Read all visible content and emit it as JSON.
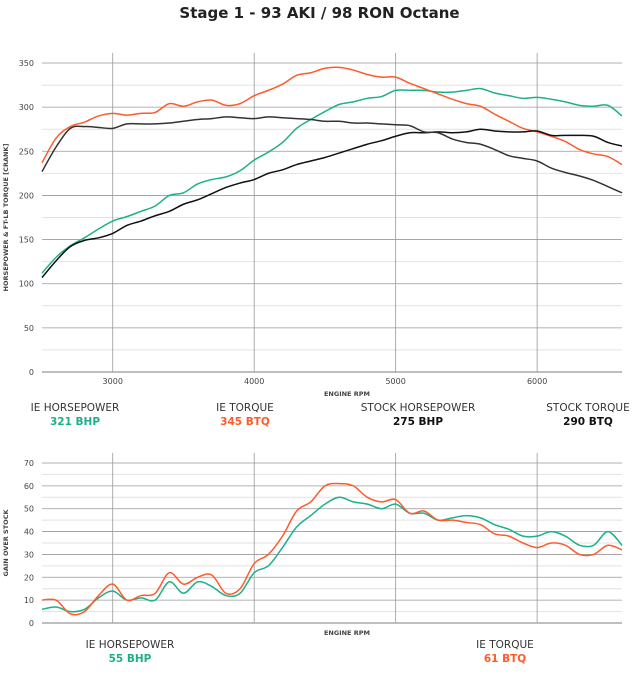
{
  "title": "Stage 1 - 93 AKI / 98 RON Octane",
  "colors": {
    "ie_hp": "#1db08a",
    "ie_tq": "#ff5a2b",
    "stock_hp": "#111111",
    "stock_tq": "#333333"
  },
  "legend_top": [
    {
      "label": "IE HORSEPOWER",
      "value": "321 BHP",
      "color": "#1db08a"
    },
    {
      "label": "IE TORQUE",
      "value": "345 BTQ",
      "color": "#ff5a2b"
    },
    {
      "label": "STOCK HORSEPOWER",
      "value": "275 BHP",
      "color": "#111111"
    },
    {
      "label": "STOCK TORQUE",
      "value": "290 BTQ",
      "color": "#111111"
    }
  ],
  "legend_bottom": [
    {
      "label": "IE HORSEPOWER",
      "value": "55 BHP",
      "color": "#1db08a"
    },
    {
      "label": "IE TORQUE",
      "value": "61 BTQ",
      "color": "#ff5a2b"
    }
  ],
  "chart_data": [
    {
      "type": "line",
      "xlabel": "ENGINE RPM",
      "ylabel": "HORSEPOWER & FT-LB TORQUE [CRANK]",
      "xlim": [
        2500,
        6600
      ],
      "ylim": [
        0,
        350
      ],
      "xticks": [
        3000,
        4000,
        5000,
        6000
      ],
      "yticks": [
        0,
        50,
        100,
        150,
        200,
        250,
        300,
        350
      ],
      "grid": true,
      "x": [
        2500,
        2600,
        2700,
        2800,
        2900,
        3000,
        3100,
        3200,
        3300,
        3400,
        3500,
        3600,
        3700,
        3800,
        3900,
        4000,
        4100,
        4200,
        4300,
        4400,
        4500,
        4600,
        4700,
        4800,
        4900,
        5000,
        5100,
        5200,
        5300,
        5400,
        5500,
        5600,
        5700,
        5800,
        5900,
        6000,
        6100,
        6200,
        6300,
        6400,
        6500,
        6600
      ],
      "series": [
        {
          "name": "IE HORSEPOWER",
          "color": "#1db08a",
          "values": [
            112,
            130,
            143,
            152,
            162,
            171,
            176,
            182,
            188,
            200,
            203,
            213,
            218,
            221,
            228,
            240,
            249,
            260,
            276,
            286,
            295,
            303,
            306,
            310,
            312,
            319,
            319,
            319,
            317,
            317,
            319,
            321,
            316,
            313,
            310,
            311,
            309,
            306,
            302,
            301,
            302,
            290
          ]
        },
        {
          "name": "IE TORQUE",
          "color": "#ff5a2b",
          "values": [
            237,
            265,
            278,
            283,
            290,
            293,
            291,
            293,
            294,
            304,
            301,
            306,
            308,
            302,
            304,
            313,
            319,
            326,
            336,
            339,
            344,
            345,
            342,
            337,
            334,
            334,
            327,
            321,
            315,
            309,
            304,
            301,
            292,
            284,
            276,
            272,
            267,
            261,
            252,
            247,
            244,
            235
          ]
        },
        {
          "name": "STOCK HORSEPOWER",
          "color": "#111111",
          "values": [
            107,
            126,
            142,
            149,
            152,
            157,
            166,
            171,
            177,
            182,
            190,
            195,
            202,
            209,
            214,
            218,
            225,
            229,
            235,
            239,
            243,
            248,
            253,
            258,
            262,
            267,
            271,
            271,
            272,
            271,
            272,
            275,
            273,
            272,
            272,
            273,
            268,
            268,
            268,
            267,
            260,
            256
          ]
        },
        {
          "name": "STOCK TORQUE",
          "color": "#333333",
          "values": [
            227,
            255,
            276,
            278,
            277,
            276,
            281,
            281,
            281,
            282,
            284,
            286,
            287,
            289,
            288,
            287,
            289,
            288,
            287,
            286,
            284,
            284,
            282,
            282,
            281,
            280,
            279,
            272,
            271,
            264,
            260,
            258,
            252,
            245,
            242,
            239,
            231,
            226,
            222,
            217,
            210,
            203
          ]
        }
      ]
    },
    {
      "type": "line",
      "xlabel": "ENGINE RPM",
      "ylabel": "GAIN OVER STOCK",
      "xlim": [
        2500,
        6600
      ],
      "ylim": [
        0,
        70
      ],
      "xticks": [
        3000,
        4000,
        5000,
        6000
      ],
      "yticks": [
        0,
        10,
        20,
        30,
        40,
        50,
        60,
        70
      ],
      "grid": true,
      "x": [
        2500,
        2600,
        2700,
        2800,
        2900,
        3000,
        3100,
        3200,
        3300,
        3400,
        3500,
        3600,
        3700,
        3800,
        3900,
        4000,
        4100,
        4200,
        4300,
        4400,
        4500,
        4600,
        4700,
        4800,
        4900,
        5000,
        5100,
        5200,
        5300,
        5400,
        5500,
        5600,
        5700,
        5800,
        5900,
        6000,
        6100,
        6200,
        6300,
        6400,
        6500,
        6600
      ],
      "series": [
        {
          "name": "IE HORSEPOWER",
          "color": "#1db08a",
          "values": [
            6,
            7,
            5,
            6,
            11,
            14,
            10,
            11,
            10,
            18,
            13,
            18,
            16,
            12,
            13,
            22,
            25,
            33,
            42,
            47,
            52,
            55,
            53,
            52,
            50,
            52,
            48,
            48,
            45,
            46,
            47,
            46,
            43,
            41,
            38,
            38,
            40,
            38,
            34,
            34,
            40,
            34
          ]
        },
        {
          "name": "IE TORQUE",
          "color": "#ff5a2b",
          "values": [
            10,
            10,
            4,
            5,
            12,
            17,
            10,
            12,
            13,
            22,
            17,
            20,
            21,
            13,
            15,
            26,
            30,
            38,
            49,
            53,
            60,
            61,
            60,
            55,
            53,
            54,
            48,
            49,
            45,
            45,
            44,
            43,
            39,
            38,
            35,
            33,
            35,
            34,
            30,
            30,
            34,
            32
          ]
        }
      ]
    }
  ]
}
